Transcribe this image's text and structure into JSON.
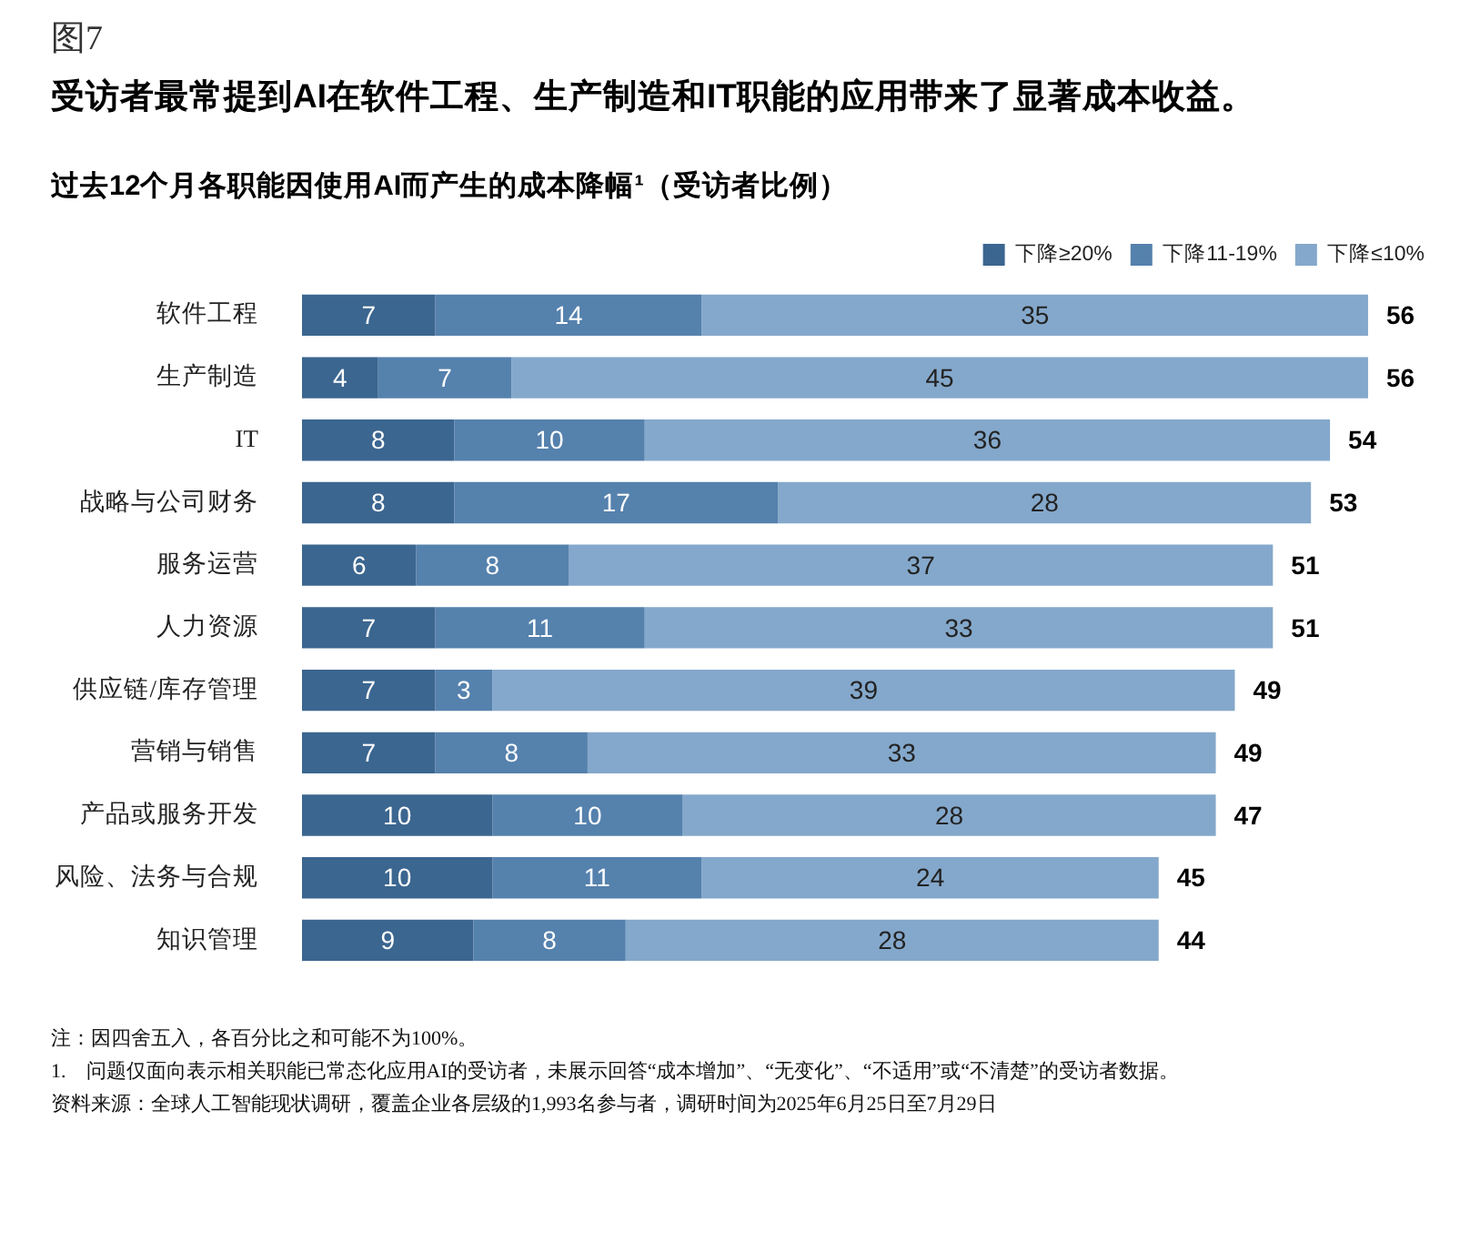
{
  "chart_data": {
    "type": "bar",
    "orientation": "horizontal",
    "stacked": true,
    "title": "受访者最常提到AI在软件工程、生产制造和IT职能的应用带来了显著成本收益。",
    "subtitle": "过去12个月各职能因使用AI而产生的成本降幅¹（受访者比例）",
    "categories": [
      "软件工程",
      "生产制造",
      "IT",
      "战略与公司财务",
      "服务运营",
      "人力资源",
      "供应链/库存管理",
      "营销与销售",
      "产品或服务开发",
      "风险、法务与合规",
      "知识管理"
    ],
    "series": [
      {
        "name": "下降≥20%",
        "color": "#3b6690",
        "values": [
          7,
          4,
          8,
          8,
          6,
          7,
          7,
          7,
          10,
          10,
          9
        ]
      },
      {
        "name": "下降11-19%",
        "color": "#5581ad",
        "values": [
          14,
          7,
          10,
          17,
          8,
          11,
          3,
          8,
          10,
          11,
          8
        ]
      },
      {
        "name": "下降≤10%",
        "color": "#84a8cb",
        "values": [
          35,
          45,
          36,
          28,
          37,
          33,
          39,
          33,
          28,
          24,
          28
        ]
      }
    ],
    "totals": [
      "56",
      "56",
      "54",
      "53",
      "51",
      "51",
      "49",
      "49",
      "47",
      "45",
      "44"
    ],
    "data_labels": true,
    "legend": "top right",
    "tick_labels": "y",
    "annotations": [
      "图7",
      "注：因四舍五入，各百分比之和可能不为100%。",
      "1.　问题仅面向表示相关职能已常态化应用AI的受访者，未展示回答“成本增加”、“无变化”、“不适用”或“不清楚”的受访者数据。",
      "资料来源：全球人工智能现状调研，覆盖企业各层级的1,993名参与者，调研时间为2025年6月25日至7月29日"
    ]
  }
}
